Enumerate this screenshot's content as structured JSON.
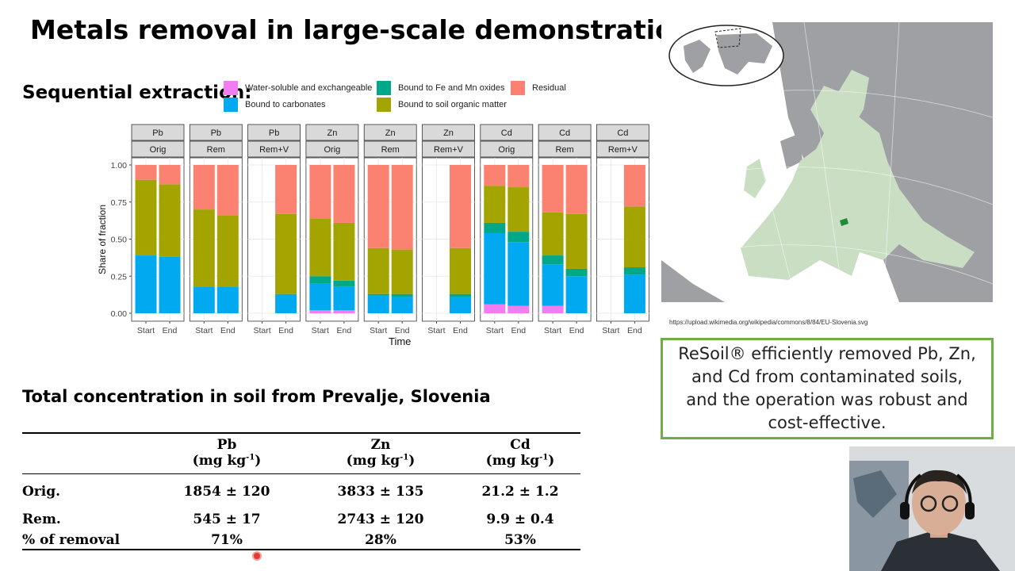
{
  "slide": {
    "title": "Metals removal in large-scale demonstration",
    "section_sequential": "Sequential extraction:",
    "section_total": "Total concentration in soil from Prevalje, Slovenia"
  },
  "map": {
    "source_url": "https://upload.wikimedia.org/wikipedia/commons/8/84/EU-Slovenia.svg",
    "colors": {
      "ocean": "#ffffff",
      "non_eu": "#9fa0a3",
      "eu": "#c9dec3",
      "slovenia": "#1f8a3a"
    }
  },
  "conclusion": {
    "text": "ReSoil® efficiently removed Pb, Zn, and Cd from contaminated soils, and the operation was robust and cost-effective."
  },
  "chart_data": {
    "type": "bar",
    "stacked": true,
    "xlabel": "Time",
    "ylabel": "Share of fraction",
    "ylim": [
      0,
      1
    ],
    "yticks": [
      "0.00",
      "0.25",
      "0.50",
      "0.75",
      "1.00"
    ],
    "categories": [
      "Start",
      "End"
    ],
    "legend": {
      "position": "top",
      "entries": [
        {
          "name": "Water-soluble and exchangeable",
          "color": "#f07ef0"
        },
        {
          "name": "Bound to carbonates",
          "color": "#00a9f0"
        },
        {
          "name": "Bound to Fe and Mn oxides",
          "color": "#00a88a"
        },
        {
          "name": "Bound to soil organic matter",
          "color": "#a4a400"
        },
        {
          "name": "Residual",
          "color": "#fb8170"
        }
      ]
    },
    "series_order": [
      "Water-soluble and exchangeable",
      "Bound to carbonates",
      "Bound to Fe and Mn oxides",
      "Bound to soil organic matter",
      "Residual"
    ],
    "facets": [
      {
        "metal": "Pb",
        "soil": "Orig",
        "bars": [
          {
            "x": "Start",
            "values": [
              0,
              0.39,
              0,
              0.51,
              0.1
            ]
          },
          {
            "x": "End",
            "values": [
              0,
              0.38,
              0,
              0.49,
              0.13
            ]
          }
        ]
      },
      {
        "metal": "Pb",
        "soil": "Rem",
        "bars": [
          {
            "x": "Start",
            "values": [
              0,
              0.18,
              0,
              0.52,
              0.3
            ]
          },
          {
            "x": "End",
            "values": [
              0,
              0.18,
              0,
              0.48,
              0.34
            ]
          }
        ]
      },
      {
        "metal": "Pb",
        "soil": "Rem+V",
        "bars": [
          {
            "x": "End",
            "values": [
              0,
              0.13,
              0,
              0.54,
              0.33
            ]
          }
        ]
      },
      {
        "metal": "Zn",
        "soil": "Orig",
        "bars": [
          {
            "x": "Start",
            "values": [
              0.02,
              0.18,
              0.05,
              0.39,
              0.36
            ]
          },
          {
            "x": "End",
            "values": [
              0.02,
              0.16,
              0.04,
              0.39,
              0.39
            ]
          }
        ]
      },
      {
        "metal": "Zn",
        "soil": "Rem",
        "bars": [
          {
            "x": "Start",
            "values": [
              0,
              0.12,
              0.01,
              0.31,
              0.56
            ]
          },
          {
            "x": "End",
            "values": [
              0,
              0.11,
              0.02,
              0.3,
              0.57
            ]
          }
        ]
      },
      {
        "metal": "Zn",
        "soil": "Rem+V",
        "bars": [
          {
            "x": "End",
            "values": [
              0,
              0.11,
              0.02,
              0.31,
              0.56
            ]
          }
        ]
      },
      {
        "metal": "Cd",
        "soil": "Orig",
        "bars": [
          {
            "x": "Start",
            "values": [
              0.06,
              0.48,
              0.07,
              0.25,
              0.14
            ]
          },
          {
            "x": "End",
            "values": [
              0.05,
              0.43,
              0.07,
              0.3,
              0.15
            ]
          }
        ]
      },
      {
        "metal": "Cd",
        "soil": "Rem",
        "bars": [
          {
            "x": "Start",
            "values": [
              0.05,
              0.28,
              0.06,
              0.29,
              0.32
            ]
          },
          {
            "x": "End",
            "values": [
              0,
              0.25,
              0.05,
              0.37,
              0.33
            ]
          }
        ]
      },
      {
        "metal": "Cd",
        "soil": "Rem+V",
        "bars": [
          {
            "x": "End",
            "values": [
              0,
              0.26,
              0.05,
              0.41,
              0.28
            ]
          }
        ]
      }
    ]
  },
  "table": {
    "headers": [
      {
        "metal": "Pb",
        "unit_base": "(mg kg",
        "unit_sup": "-1",
        "unit_end": ")"
      },
      {
        "metal": "Zn",
        "unit_base": "(mg kg",
        "unit_sup": "-1",
        "unit_end": ")"
      },
      {
        "metal": "Cd",
        "unit_base": "(mg kg",
        "unit_sup": "-1",
        "unit_end": ")"
      }
    ],
    "rows": [
      {
        "label": "Orig.",
        "values": [
          "1854 ± 120",
          "3833 ± 135",
          "21.2 ± 1.2"
        ]
      },
      {
        "label": "Rem.",
        "values": [
          "545 ± 17",
          "2743 ± 120",
          "9.9 ± 0.4"
        ]
      },
      {
        "label": "% of removal",
        "values": [
          "71%",
          "28%",
          "53%"
        ]
      }
    ]
  }
}
